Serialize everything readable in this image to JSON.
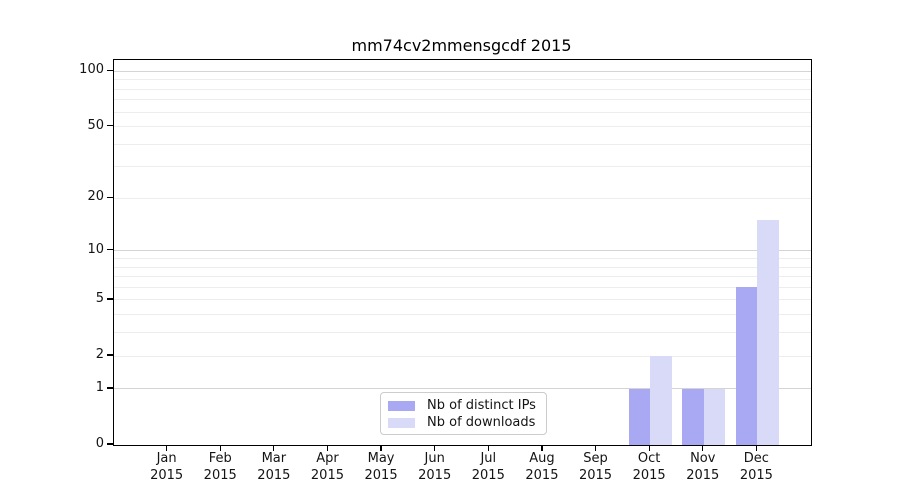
{
  "chart_data": {
    "type": "bar",
    "title": "mm74cv2mmensgcdf 2015",
    "x": [
      "Jan",
      "Feb",
      "Mar",
      "Apr",
      "May",
      "Jun",
      "Jul",
      "Aug",
      "Sep",
      "Oct",
      "Nov",
      "Dec"
    ],
    "x_year": "2015",
    "series": [
      {
        "name": "Nb of distinct IPs",
        "color": "#a8a8f3",
        "values": [
          0,
          0,
          0,
          0,
          0,
          0,
          0,
          0,
          0,
          1,
          1,
          6
        ]
      },
      {
        "name": "Nb of downloads",
        "color": "#d9d9f8",
        "values": [
          0,
          0,
          0,
          0,
          0,
          0,
          0,
          0,
          0,
          2,
          1,
          15
        ]
      }
    ],
    "y_scale": "log10(1+v)",
    "ylim": [
      0,
      115
    ],
    "y_tick_values": [
      0,
      1,
      2,
      5,
      10,
      20,
      50,
      100
    ],
    "y_major_gridlines": [
      1,
      10,
      100
    ],
    "y_minor_gridlines": [
      2,
      3,
      4,
      5,
      6,
      7,
      8,
      9,
      20,
      30,
      40,
      50,
      60,
      70,
      80,
      90
    ],
    "grid": "horizontal",
    "legend_position": "lower center"
  },
  "colors": {
    "major_grid": "#d4d4d4",
    "minor_grid": "#ededed",
    "axis": "#000000",
    "text": "#141414",
    "legend_border": "#cccccc",
    "background": "#ffffff"
  }
}
